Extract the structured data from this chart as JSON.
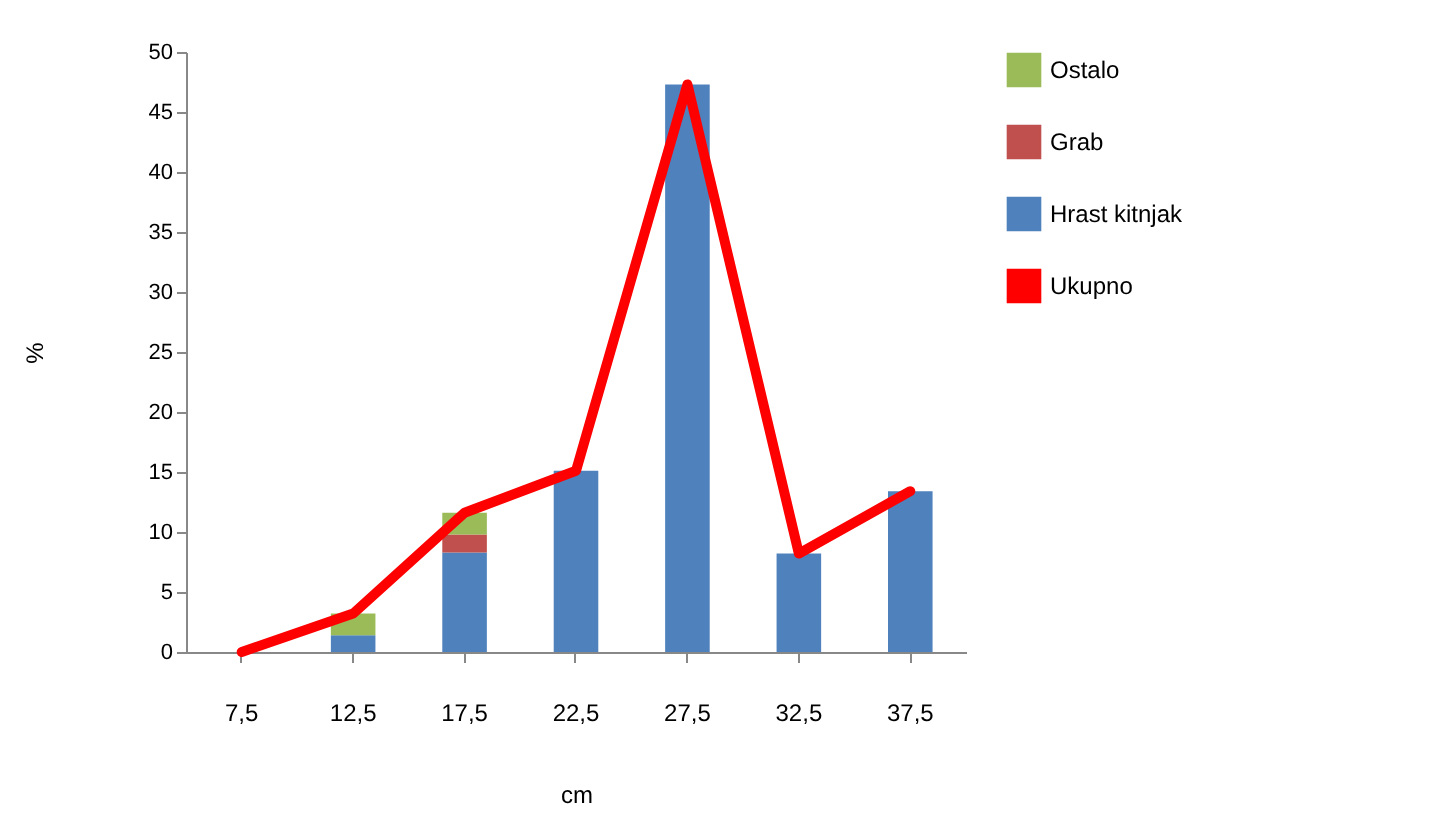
{
  "chart_data": {
    "type": "bar",
    "stacked": true,
    "xlabel": "cm",
    "ylabel": "%",
    "categories": [
      "7,5",
      "12,5",
      "17,5",
      "22,5",
      "27,5",
      "32,5",
      "37,5"
    ],
    "series": [
      {
        "name": "Hrast kitnjak",
        "color": "#4f81bd",
        "values": [
          0,
          1.4,
          8.3,
          15.1,
          47.3,
          8.2,
          13.4
        ]
      },
      {
        "name": "Grab",
        "color": "#c0504d",
        "values": [
          0,
          0,
          1.5,
          0,
          0,
          0,
          0
        ]
      },
      {
        "name": "Ostalo",
        "color": "#9bbb59",
        "values": [
          0,
          1.8,
          1.8,
          0,
          0,
          0,
          0
        ]
      },
      {
        "name": "Ukupno",
        "type": "line",
        "color": "#ff0000",
        "values": [
          0,
          3.2,
          11.6,
          15.1,
          47.3,
          8.2,
          13.4
        ]
      }
    ],
    "ylim": [
      0,
      50
    ],
    "yticks": [
      0,
      5,
      10,
      15,
      20,
      25,
      30,
      35,
      40,
      45,
      50
    ],
    "grid": false,
    "legend": "right"
  }
}
